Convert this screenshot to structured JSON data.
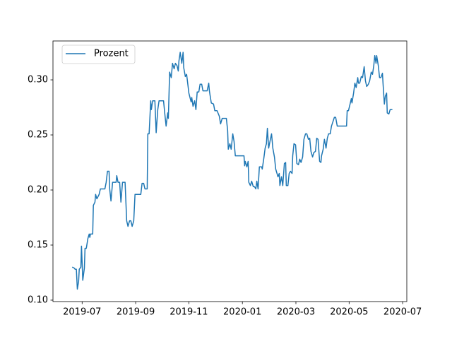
{
  "chart_data": {
    "type": "line",
    "x": [
      2019.469,
      2019.476,
      2019.478,
      2019.482,
      2019.485,
      2019.489,
      2019.491,
      2019.496,
      2019.498,
      2019.502,
      2019.507,
      2019.509,
      2019.513,
      2019.518,
      2019.522,
      2019.524,
      2019.526,
      2019.533,
      2019.535,
      2019.54,
      2019.542,
      2019.546,
      2019.553,
      2019.557,
      2019.571,
      2019.575,
      2019.579,
      2019.584,
      2019.586,
      2019.59,
      2019.595,
      2019.606,
      2019.608,
      2019.612,
      2019.617,
      2019.621,
      2019.626,
      2019.634,
      2019.639,
      2019.643,
      2019.648,
      2019.652,
      2019.656,
      2019.661,
      2019.665,
      2019.683,
      2019.687,
      2019.692,
      2019.696,
      2019.703,
      2019.705,
      2019.709,
      2019.714,
      2019.716,
      2019.72,
      2019.727,
      2019.731,
      2019.736,
      2019.74,
      2019.754,
      2019.758,
      2019.762,
      2019.767,
      2019.769,
      2019.773,
      2019.778,
      2019.782,
      2019.787,
      2019.791,
      2019.796,
      2019.8,
      2019.802,
      2019.806,
      2019.811,
      2019.815,
      2019.817,
      2019.822,
      2019.826,
      2019.831,
      2019.833,
      2019.84,
      2019.842,
      2019.846,
      2019.851,
      2019.855,
      2019.859,
      2019.864,
      2019.868,
      2019.873,
      2019.877,
      2019.89,
      2019.895,
      2019.897,
      2019.903,
      2019.91,
      2019.914,
      2019.921,
      2019.928,
      2019.932,
      2019.937,
      2019.95,
      2019.954,
      2019.956,
      2019.961,
      2019.965,
      2019.97,
      2019.974,
      2019.978,
      2020.005,
      2020.007,
      2020.009,
      2020.014,
      2020.018,
      2020.02,
      2020.025,
      2020.029,
      2020.034,
      2020.038,
      2020.042,
      2020.045,
      2020.049,
      2020.053,
      2020.06,
      2020.062,
      2020.067,
      2020.071,
      2020.075,
      2020.078,
      2020.082,
      2020.086,
      2020.091,
      2020.095,
      2020.1,
      2020.104,
      2020.111,
      2020.115,
      2020.117,
      2020.122,
      2020.126,
      2020.131,
      2020.135,
      2020.137,
      2020.142,
      2020.146,
      2020.15,
      2020.155,
      2020.157,
      2020.161,
      2020.166,
      2020.17,
      2020.175,
      2020.179,
      2020.183,
      2020.188,
      2020.192,
      2020.197,
      2020.201,
      2020.206,
      2020.21,
      2020.214,
      2020.219,
      2020.223,
      2020.228,
      2020.232,
      2020.236,
      2020.241,
      2020.245,
      2020.247,
      2020.252,
      2020.256,
      2020.261,
      2020.265,
      2020.269,
      2020.274,
      2020.278,
      2020.287,
      2020.291,
      2020.296,
      2020.325,
      2020.327,
      2020.331,
      2020.336,
      2020.34,
      2020.342,
      2020.347,
      2020.351,
      2020.355,
      2020.36,
      2020.362,
      2020.366,
      2020.371,
      2020.375,
      2020.38,
      2020.384,
      2020.388,
      2020.393,
      2020.397,
      2020.402,
      2020.406,
      2020.41,
      2020.413,
      2020.417,
      2020.419,
      2020.424,
      2020.428,
      2020.432,
      2020.437,
      2020.439,
      2020.443,
      2020.446,
      2020.45,
      2020.452,
      2020.457,
      2020.461,
      2020.468
    ],
    "series": [
      {
        "name": "Prozent",
        "color": "#1f77b4",
        "values": [
          0.13,
          0.129,
          0.128,
          0.128,
          0.11,
          0.117,
          0.128,
          0.13,
          0.149,
          0.118,
          0.129,
          0.147,
          0.147,
          0.156,
          0.16,
          0.157,
          0.16,
          0.16,
          0.186,
          0.189,
          0.196,
          0.192,
          0.196,
          0.201,
          0.201,
          0.207,
          0.217,
          0.217,
          0.201,
          0.19,
          0.207,
          0.207,
          0.213,
          0.207,
          0.207,
          0.189,
          0.207,
          0.207,
          0.172,
          0.167,
          0.172,
          0.172,
          0.167,
          0.172,
          0.196,
          0.196,
          0.206,
          0.206,
          0.201,
          0.201,
          0.251,
          0.251,
          0.281,
          0.273,
          0.281,
          0.281,
          0.252,
          0.273,
          0.281,
          0.281,
          0.269,
          0.258,
          0.27,
          0.265,
          0.307,
          0.302,
          0.315,
          0.31,
          0.315,
          0.313,
          0.308,
          0.317,
          0.325,
          0.315,
          0.325,
          0.311,
          0.303,
          0.305,
          0.293,
          0.288,
          0.28,
          0.284,
          0.276,
          0.281,
          0.273,
          0.289,
          0.289,
          0.296,
          0.296,
          0.29,
          0.29,
          0.297,
          0.29,
          0.279,
          0.278,
          0.272,
          0.272,
          0.267,
          0.26,
          0.265,
          0.265,
          0.254,
          0.237,
          0.242,
          0.237,
          0.251,
          0.244,
          0.231,
          0.231,
          0.222,
          0.226,
          0.221,
          0.226,
          0.207,
          0.204,
          0.208,
          0.203,
          0.203,
          0.201,
          0.208,
          0.201,
          0.221,
          0.221,
          0.219,
          0.229,
          0.238,
          0.242,
          0.256,
          0.238,
          0.244,
          0.251,
          0.238,
          0.23,
          0.219,
          0.212,
          0.215,
          0.204,
          0.212,
          0.204,
          0.224,
          0.225,
          0.204,
          0.204,
          0.215,
          0.217,
          0.215,
          0.231,
          0.242,
          0.241,
          0.224,
          0.223,
          0.228,
          0.225,
          0.23,
          0.246,
          0.251,
          0.251,
          0.246,
          0.247,
          0.235,
          0.23,
          0.234,
          0.235,
          0.247,
          0.246,
          0.226,
          0.225,
          0.231,
          0.237,
          0.246,
          0.238,
          0.247,
          0.251,
          0.251,
          0.258,
          0.266,
          0.266,
          0.258,
          0.258,
          0.272,
          0.272,
          0.278,
          0.283,
          0.279,
          0.288,
          0.297,
          0.293,
          0.302,
          0.297,
          0.297,
          0.303,
          0.302,
          0.312,
          0.299,
          0.294,
          0.296,
          0.299,
          0.307,
          0.305,
          0.313,
          0.322,
          0.315,
          0.322,
          0.313,
          0.302,
          0.302,
          0.306,
          0.296,
          0.278,
          0.285,
          0.288,
          0.27,
          0.269,
          0.273,
          0.273
        ]
      }
    ],
    "xlim": [
      2019.409,
      2020.513
    ],
    "xticks": [
      {
        "value": 2019.5,
        "label": "2019-07"
      },
      {
        "value": 2019.667,
        "label": "2019-09"
      },
      {
        "value": 2019.833,
        "label": "2019-11"
      },
      {
        "value": 2020.0,
        "label": "2020-01"
      },
      {
        "value": 2020.167,
        "label": "2020-03"
      },
      {
        "value": 2020.333,
        "label": "2020-05"
      },
      {
        "value": 2020.5,
        "label": "2020-07"
      }
    ],
    "ylim": [
      0.0987,
      0.3353
    ],
    "yticks": [
      {
        "value": 0.1,
        "label": "0.10"
      },
      {
        "value": 0.15,
        "label": "0.15"
      },
      {
        "value": 0.2,
        "label": "0.20"
      },
      {
        "value": 0.25,
        "label": "0.25"
      },
      {
        "value": 0.3,
        "label": "0.30"
      }
    ],
    "legend": "upper left"
  }
}
